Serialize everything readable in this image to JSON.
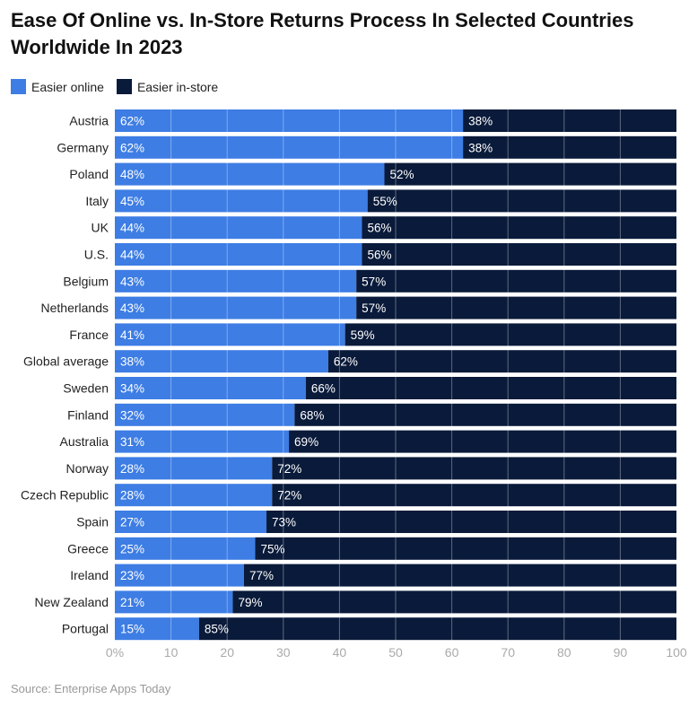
{
  "chart_data": {
    "type": "bar",
    "orientation": "horizontal",
    "stacked": true,
    "title": "Ease Of Online vs. In-Store Returns Process In Selected Countries Worldwide In 2023",
    "categories": [
      "Austria",
      "Germany",
      "Poland",
      "Italy",
      "UK",
      "U.S.",
      "Belgium",
      "Netherlands",
      "France",
      "Global average",
      "Sweden",
      "Finland",
      "Australia",
      "Norway",
      "Czech Republic",
      "Spain",
      "Greece",
      "Ireland",
      "New Zealand",
      "Portugal"
    ],
    "series": [
      {
        "name": "Easier online",
        "color": "#3d7de4",
        "values": [
          62,
          62,
          48,
          45,
          44,
          44,
          43,
          43,
          41,
          38,
          34,
          32,
          31,
          28,
          28,
          27,
          25,
          23,
          21,
          15
        ]
      },
      {
        "name": "Easier in-store",
        "color": "#0a1a3a",
        "values": [
          38,
          38,
          52,
          55,
          56,
          56,
          57,
          57,
          59,
          62,
          66,
          68,
          69,
          72,
          72,
          73,
          75,
          77,
          79,
          85
        ]
      }
    ],
    "xlim": [
      0,
      100
    ],
    "xticks": [
      "0%",
      "10",
      "20",
      "30",
      "40",
      "50",
      "60",
      "70",
      "80",
      "90",
      "100"
    ],
    "grid": true,
    "legend": "top-left",
    "value_suffix": "%"
  },
  "source": "Source: Enterprise Apps Today"
}
